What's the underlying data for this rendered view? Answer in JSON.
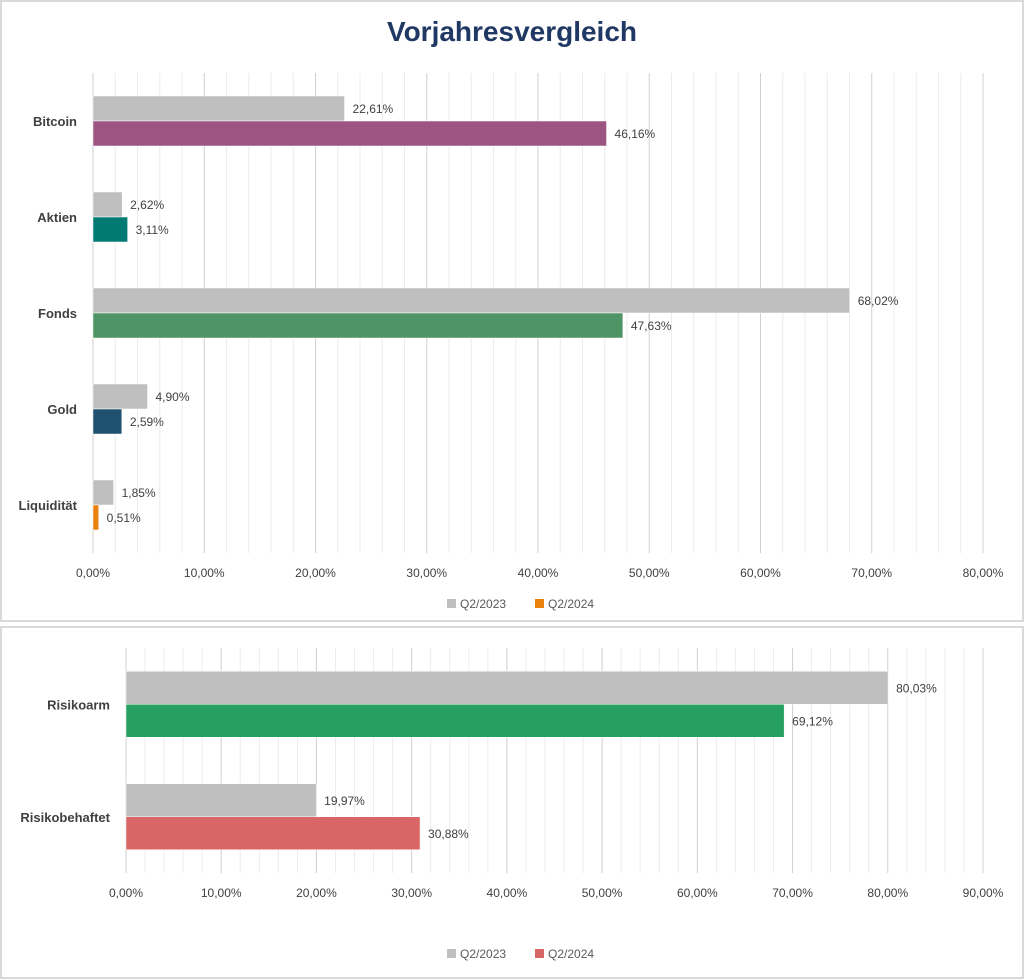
{
  "charts_title": "Vorjahresvergleich",
  "chart_data": [
    {
      "type": "bar",
      "orientation": "horizontal",
      "title": "Vorjahresvergleich",
      "categories": [
        "Bitcoin",
        "Aktien",
        "Fonds",
        "Gold",
        "Liquidität"
      ],
      "series": [
        {
          "name": "Q2/2023",
          "values": [
            22.61,
            2.62,
            68.02,
            4.9,
            1.85
          ],
          "labels": [
            "22,61%",
            "2,62%",
            "68,02%",
            "4,90%",
            "1,85%"
          ],
          "color": "#bfbfbf"
        },
        {
          "name": "Q2/2024",
          "values": [
            46.16,
            3.11,
            47.63,
            2.59,
            0.51
          ],
          "labels": [
            "46,16%",
            "3,11%",
            "47,63%",
            "2,59%",
            "0,51%"
          ],
          "colors": [
            "#9c5583",
            "#007a73",
            "#4f9464",
            "#1f5070",
            "#e8820c"
          ]
        }
      ],
      "legend_colors": [
        "#bfbfbf",
        "#e8820c"
      ],
      "xlim": [
        0,
        80
      ],
      "xticks": [
        "0,00%",
        "10,00%",
        "20,00%",
        "30,00%",
        "40,00%",
        "50,00%",
        "60,00%",
        "70,00%",
        "80,00%"
      ],
      "grid": true,
      "legend": "bottom"
    },
    {
      "type": "bar",
      "orientation": "horizontal",
      "categories": [
        "Risikoarm",
        "Risikobehaftet"
      ],
      "series": [
        {
          "name": "Q2/2023",
          "values": [
            80.03,
            19.97
          ],
          "labels": [
            "80,03%",
            "19,97%"
          ],
          "color": "#bfbfbf"
        },
        {
          "name": "Q2/2024",
          "values": [
            69.12,
            30.88
          ],
          "labels": [
            "69,12%",
            "30,88%"
          ],
          "colors": [
            "#26a060",
            "#d96666"
          ]
        }
      ],
      "legend_colors": [
        "#bfbfbf",
        "#d96666"
      ],
      "xlim": [
        0,
        90
      ],
      "xticks": [
        "0,00%",
        "10,00%",
        "20,00%",
        "30,00%",
        "40,00%",
        "50,00%",
        "60,00%",
        "70,00%",
        "80,00%",
        "90,00%"
      ],
      "grid": true,
      "legend": "bottom"
    }
  ]
}
